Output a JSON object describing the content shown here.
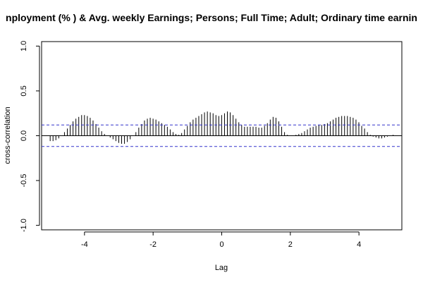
{
  "chart_data": {
    "type": "bar",
    "title": "nployment (% ) & Avg. weekly Earnings; Persons; Full Time; Adult; Ordinary time earnin",
    "xlabel": "Lag",
    "ylabel": "cross-correlation",
    "xlim": [
      -5.25,
      5.25
    ],
    "ylim": [
      -1.05,
      1.05
    ],
    "x_ticks": [
      -4,
      -2,
      0,
      2,
      4
    ],
    "x_tick_labels": [
      "-4",
      "-2",
      "0",
      "2",
      "4"
    ],
    "y_ticks": [
      -1.0,
      -0.5,
      0.0,
      0.5,
      1.0
    ],
    "y_tick_labels": [
      "-1.0",
      "-0.5",
      "0.0",
      "0.5",
      "1.0"
    ],
    "confidence_bounds": [
      0.12,
      -0.12
    ],
    "lag_step": 0.0833,
    "lags_start": -5.0,
    "lags_count": 121,
    "values": [
      -0.06,
      -0.06,
      -0.05,
      -0.03,
      0.0,
      0.04,
      0.08,
      0.12,
      0.16,
      0.19,
      0.21,
      0.23,
      0.23,
      0.22,
      0.2,
      0.17,
      0.13,
      0.09,
      0.05,
      0.02,
      0.0,
      -0.02,
      -0.04,
      -0.06,
      -0.08,
      -0.09,
      -0.09,
      -0.07,
      -0.04,
      0.0,
      0.04,
      0.09,
      0.13,
      0.17,
      0.19,
      0.2,
      0.19,
      0.18,
      0.16,
      0.14,
      0.12,
      0.1,
      0.07,
      0.04,
      0.02,
      0.01,
      0.03,
      0.07,
      0.11,
      0.15,
      0.18,
      0.2,
      0.22,
      0.24,
      0.26,
      0.27,
      0.26,
      0.25,
      0.23,
      0.22,
      0.23,
      0.25,
      0.27,
      0.26,
      0.23,
      0.19,
      0.15,
      0.12,
      0.1,
      0.1,
      0.1,
      0.1,
      0.1,
      0.09,
      0.09,
      0.11,
      0.14,
      0.18,
      0.21,
      0.2,
      0.16,
      0.1,
      0.04,
      0.01,
      0.0,
      0.0,
      0.01,
      0.02,
      0.03,
      0.05,
      0.07,
      0.09,
      0.1,
      0.11,
      0.12,
      0.12,
      0.13,
      0.14,
      0.16,
      0.18,
      0.2,
      0.21,
      0.22,
      0.22,
      0.22,
      0.21,
      0.2,
      0.18,
      0.15,
      0.11,
      0.08,
      0.04,
      0.01,
      -0.01,
      -0.02,
      -0.03,
      -0.03,
      -0.02,
      -0.01,
      0.0,
      0.01
    ],
    "grid": false,
    "legend": "none",
    "colors": {
      "bars": "#000000",
      "bounds": "#3333cc",
      "zero_line": "#000000",
      "frame": "#000000"
    }
  }
}
